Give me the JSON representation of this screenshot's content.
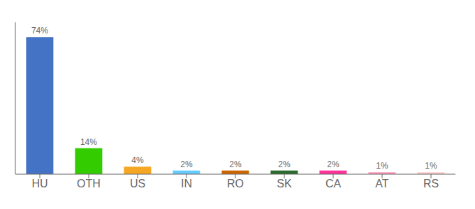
{
  "chart_data": {
    "type": "bar",
    "categories": [
      "HU",
      "OTH",
      "US",
      "IN",
      "RO",
      "SK",
      "CA",
      "AT",
      "RS"
    ],
    "values": [
      74,
      14,
      4,
      2,
      2,
      2,
      2,
      1,
      1
    ],
    "value_labels": [
      "74%",
      "14%",
      "4%",
      "2%",
      "2%",
      "2%",
      "2%",
      "1%",
      "1%"
    ],
    "colors": [
      "#4472c4",
      "#33cc00",
      "#f5a623",
      "#66ccff",
      "#cc6600",
      "#2d6a2d",
      "#ff3399",
      "#ff99bb",
      "#ffcccc"
    ],
    "ylim": [
      0,
      82
    ],
    "data_labels": true,
    "tick_labels": "x"
  }
}
